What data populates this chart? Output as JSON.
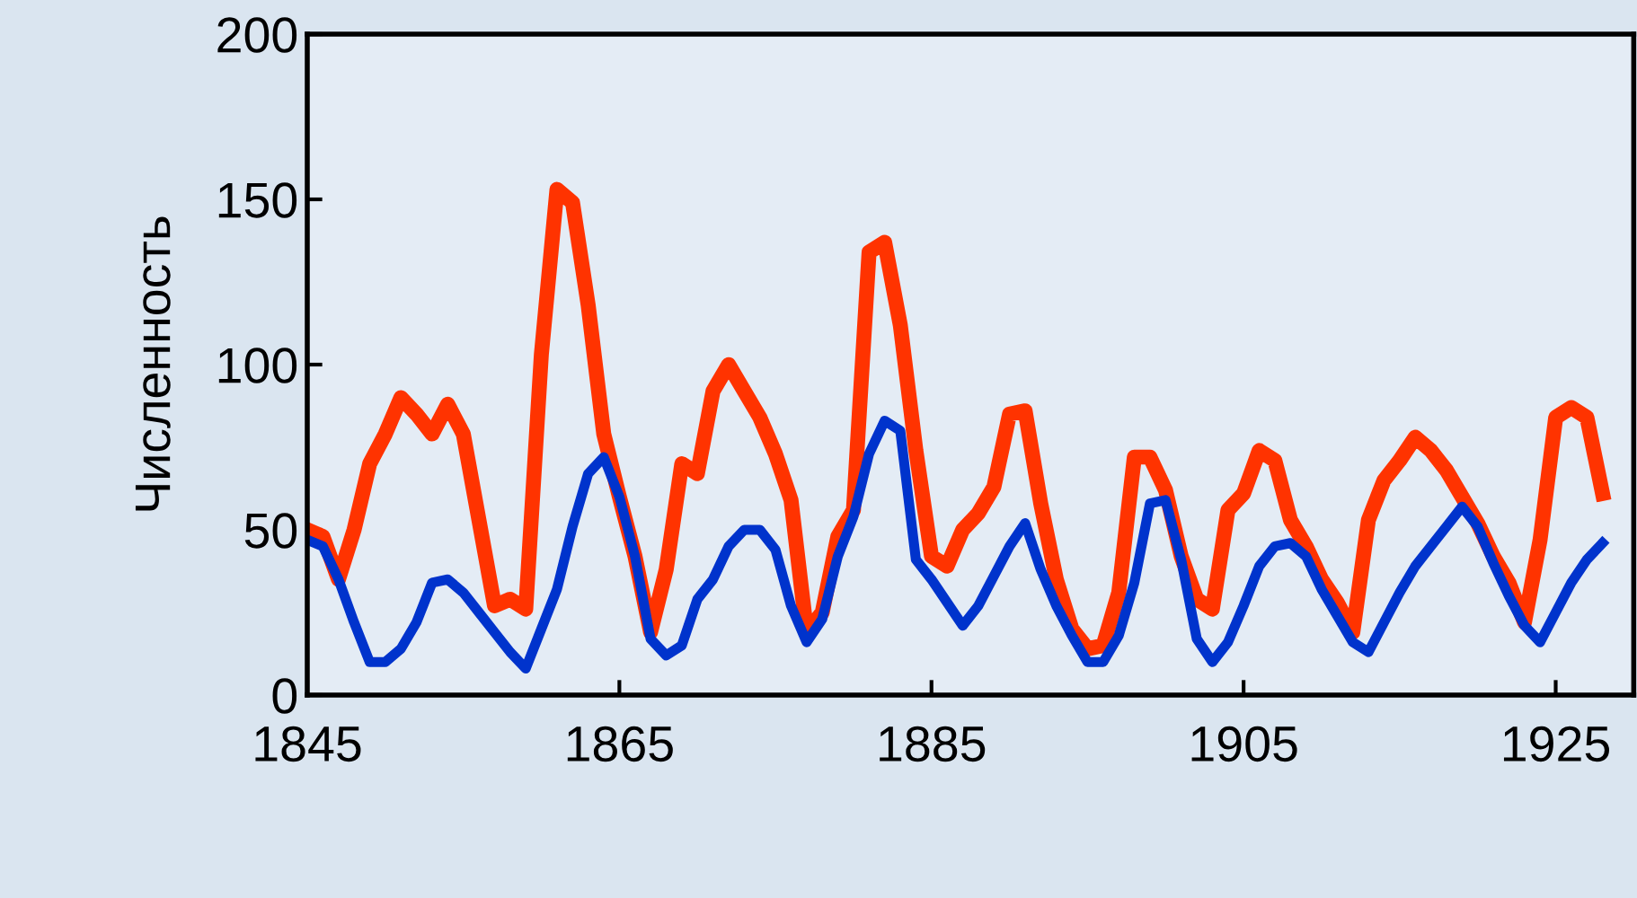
{
  "chart_data": {
    "type": "line",
    "ylabel": "Численность",
    "x": [
      1845,
      1846,
      1847,
      1848,
      1849,
      1850,
      1851,
      1852,
      1853,
      1854,
      1855,
      1856,
      1857,
      1858,
      1859,
      1860,
      1861,
      1862,
      1863,
      1864,
      1865,
      1866,
      1867,
      1868,
      1869,
      1870,
      1871,
      1872,
      1873,
      1874,
      1875,
      1876,
      1877,
      1878,
      1879,
      1880,
      1881,
      1882,
      1883,
      1884,
      1885,
      1886,
      1887,
      1888,
      1889,
      1890,
      1891,
      1892,
      1893,
      1894,
      1895,
      1896,
      1897,
      1898,
      1899,
      1900,
      1901,
      1902,
      1903,
      1904,
      1905,
      1906,
      1907,
      1908,
      1909,
      1910,
      1911,
      1912,
      1913,
      1914,
      1915,
      1916,
      1917,
      1918,
      1919,
      1920,
      1921,
      1922,
      1923,
      1924,
      1925,
      1926,
      1927,
      1928
    ],
    "series": [
      {
        "color": "#ff3300",
        "values": [
          50,
          48,
          35,
          50,
          70,
          79,
          90,
          85,
          79,
          88,
          79,
          53,
          27,
          29,
          26,
          103,
          153,
          149,
          118,
          79,
          60,
          42,
          19,
          38,
          70,
          67,
          92,
          100,
          92,
          84,
          73,
          59,
          19,
          25,
          48,
          56,
          134,
          137,
          112,
          74,
          42,
          39,
          50,
          55,
          63,
          85,
          86,
          58,
          35,
          20,
          14,
          15,
          31,
          72,
          72,
          62,
          42,
          29,
          26,
          56,
          61,
          74,
          71,
          53,
          45,
          35,
          28,
          19,
          53,
          65,
          71,
          78,
          74,
          68,
          60,
          52,
          42,
          34,
          22,
          47,
          84,
          87,
          84,
          61
        ]
      },
      {
        "color": "#0033cc",
        "values": [
          47,
          45,
          35,
          22,
          10,
          10,
          14,
          22,
          34,
          35,
          31,
          25,
          19,
          13,
          8,
          20,
          32,
          51,
          67,
          72,
          60,
          42,
          17,
          12,
          15,
          29,
          35,
          45,
          50,
          50,
          44,
          27,
          16,
          23,
          42,
          54,
          73,
          83,
          80,
          41,
          35,
          28,
          21,
          27,
          36,
          45,
          52,
          38,
          27,
          18,
          10,
          10,
          18,
          34,
          58,
          59,
          41,
          17,
          10,
          16,
          27,
          39,
          45,
          46,
          42,
          32,
          24,
          16,
          13,
          22,
          31,
          39,
          45,
          51,
          57,
          51,
          40,
          30,
          21,
          16,
          25,
          34,
          41,
          46
        ]
      }
    ],
    "xlim": [
      1845,
      1930
    ],
    "xticks": [
      1845,
      1865,
      1885,
      1905,
      1925
    ],
    "ylim": [
      0,
      200
    ],
    "yticks": [
      0,
      50,
      100,
      150,
      200
    ],
    "grid": false,
    "legend": false,
    "line_style": "solid",
    "marker": "none"
  }
}
